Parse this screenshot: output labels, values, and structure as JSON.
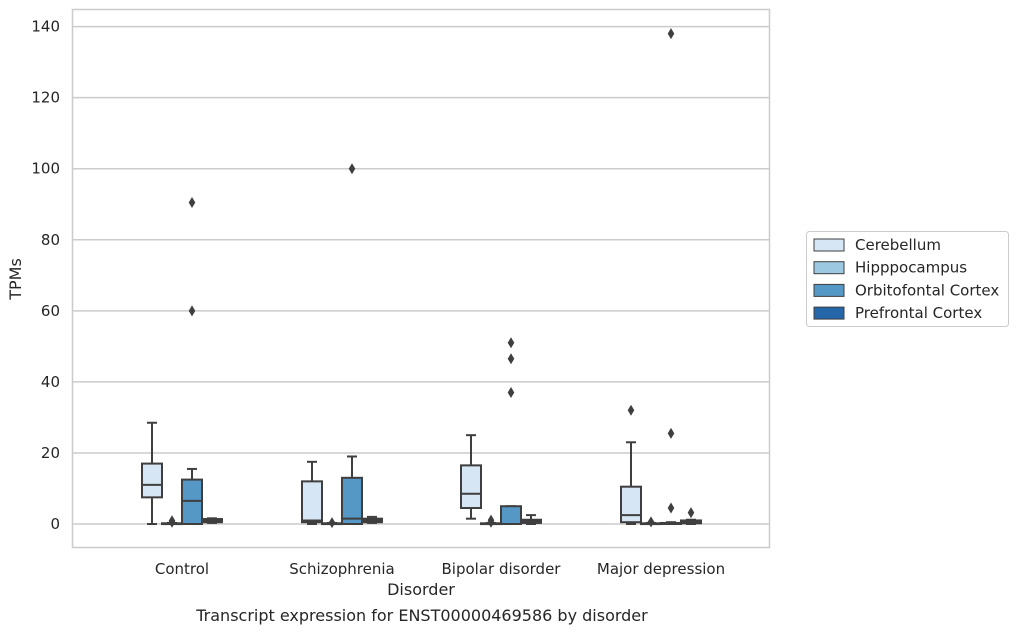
{
  "caption": "Transcript expression for ENST00000469586 by disorder",
  "chart_data": {
    "type": "boxplot",
    "title": "",
    "xlabel": "Disorder",
    "ylabel": "TPMs",
    "ylim": [
      -6.5,
      145
    ],
    "yticks": [
      0,
      20,
      40,
      60,
      80,
      100,
      120,
      140
    ],
    "grid": true,
    "legend_position": "right",
    "categories": [
      "Control",
      "Schizophrenia",
      "Bipolar disorder",
      "Major depression"
    ],
    "series": [
      {
        "name": "Cerebellum",
        "color": "#d6e6f4",
        "boxes": [
          {
            "whisker_low": 0,
            "q1": 7.5,
            "median": 11,
            "q3": 17,
            "whisker_high": 28.5,
            "outliers": []
          },
          {
            "whisker_low": 0,
            "q1": 0.5,
            "median": 1,
            "q3": 12,
            "whisker_high": 17.5,
            "outliers": []
          },
          {
            "whisker_low": 1.5,
            "q1": 4.5,
            "median": 8.5,
            "q3": 16.5,
            "whisker_high": 25,
            "outliers": []
          },
          {
            "whisker_low": 0,
            "q1": 0.5,
            "median": 2.5,
            "q3": 10.5,
            "whisker_high": 23,
            "outliers": [
              32
            ]
          }
        ]
      },
      {
        "name": "Hipppocampus",
        "color": "#9cc9e1",
        "boxes": [
          {
            "whisker_low": 0,
            "q1": 0,
            "median": 0,
            "q3": 0.2,
            "whisker_high": 0.3,
            "outliers": [
              0.5,
              0.9
            ]
          },
          {
            "whisker_low": 0,
            "q1": 0,
            "median": 0,
            "q3": 0.2,
            "whisker_high": 0.3,
            "outliers": [
              0.4
            ]
          },
          {
            "whisker_low": 0,
            "q1": 0,
            "median": 0,
            "q3": 0.2,
            "whisker_high": 0.3,
            "outliers": [
              0.5,
              1.1
            ]
          },
          {
            "whisker_low": 0,
            "q1": 0,
            "median": 0,
            "q3": 0.2,
            "whisker_high": 0.3,
            "outliers": [
              0.6
            ]
          }
        ]
      },
      {
        "name": "Orbitofontal Cortex",
        "color": "#5698c5",
        "boxes": [
          {
            "whisker_low": 0,
            "q1": 0,
            "median": 6.5,
            "q3": 12.5,
            "whisker_high": 15.5,
            "outliers": [
              60,
              90.5
            ]
          },
          {
            "whisker_low": 0,
            "q1": 0,
            "median": 1.5,
            "q3": 13,
            "whisker_high": 19,
            "outliers": [
              100
            ]
          },
          {
            "whisker_low": 0,
            "q1": 0,
            "median": 0,
            "q3": 5,
            "whisker_high": 5,
            "outliers": [
              37,
              46.5,
              51
            ]
          },
          {
            "whisker_low": 0,
            "q1": 0,
            "median": 0,
            "q3": 0.3,
            "whisker_high": 0.5,
            "outliers": [
              4.5,
              25.5,
              138
            ]
          }
        ]
      },
      {
        "name": "Prefrontal Cortex",
        "color": "#2466a8",
        "boxes": [
          {
            "whisker_low": 0.3,
            "q1": 0.5,
            "median": 1,
            "q3": 1.4,
            "whisker_high": 1.6,
            "outliers": []
          },
          {
            "whisker_low": 0.3,
            "q1": 0.5,
            "median": 1,
            "q3": 1.5,
            "whisker_high": 2,
            "outliers": []
          },
          {
            "whisker_low": 0,
            "q1": 0.3,
            "median": 0.8,
            "q3": 1.2,
            "whisker_high": 2.5,
            "outliers": []
          },
          {
            "whisker_low": 0,
            "q1": 0.2,
            "median": 0.5,
            "q3": 1,
            "whisker_high": 1.2,
            "outliers": [
              3.2
            ]
          }
        ]
      }
    ]
  }
}
